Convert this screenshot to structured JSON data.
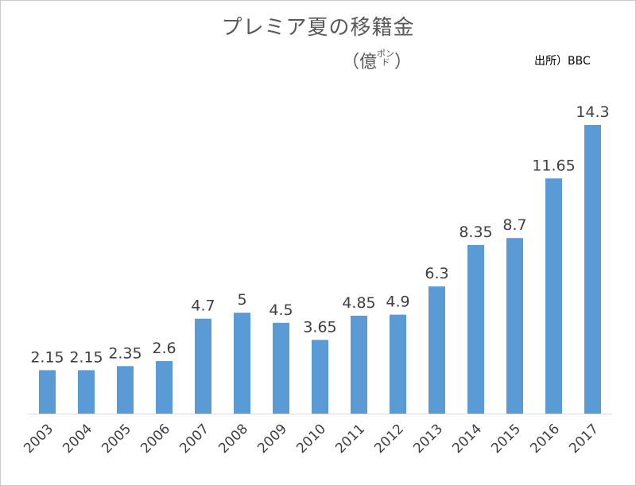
{
  "chart_data": {
    "type": "bar",
    "title": "プレミア夏の移籍金",
    "unit_label": {
      "open": "（",
      "main": "億",
      "small": "ポンド",
      "close": "）"
    },
    "source": "出所）BBC",
    "categories": [
      "2003",
      "2004",
      "2005",
      "2006",
      "2007",
      "2008",
      "2009",
      "2010",
      "2011",
      "2012",
      "2013",
      "2014",
      "2015",
      "2016",
      "2017"
    ],
    "values": [
      2.15,
      2.15,
      2.35,
      2.6,
      4.7,
      5,
      4.5,
      3.65,
      4.85,
      4.9,
      6.3,
      8.35,
      8.7,
      11.65,
      14.3
    ],
    "value_labels": [
      "2.15",
      "2.15",
      "2.35",
      "2.6",
      "4.7",
      "5",
      "4.5",
      "3.65",
      "4.85",
      "4.9",
      "6.3",
      "8.35",
      "8.7",
      "11.65",
      "14.3"
    ],
    "ylim": [
      0,
      14.3
    ],
    "grid": false,
    "legend": "none",
    "colors": {
      "bar": "#5b9bd5",
      "text": "#595959",
      "axis": "#d9d9d9"
    }
  }
}
